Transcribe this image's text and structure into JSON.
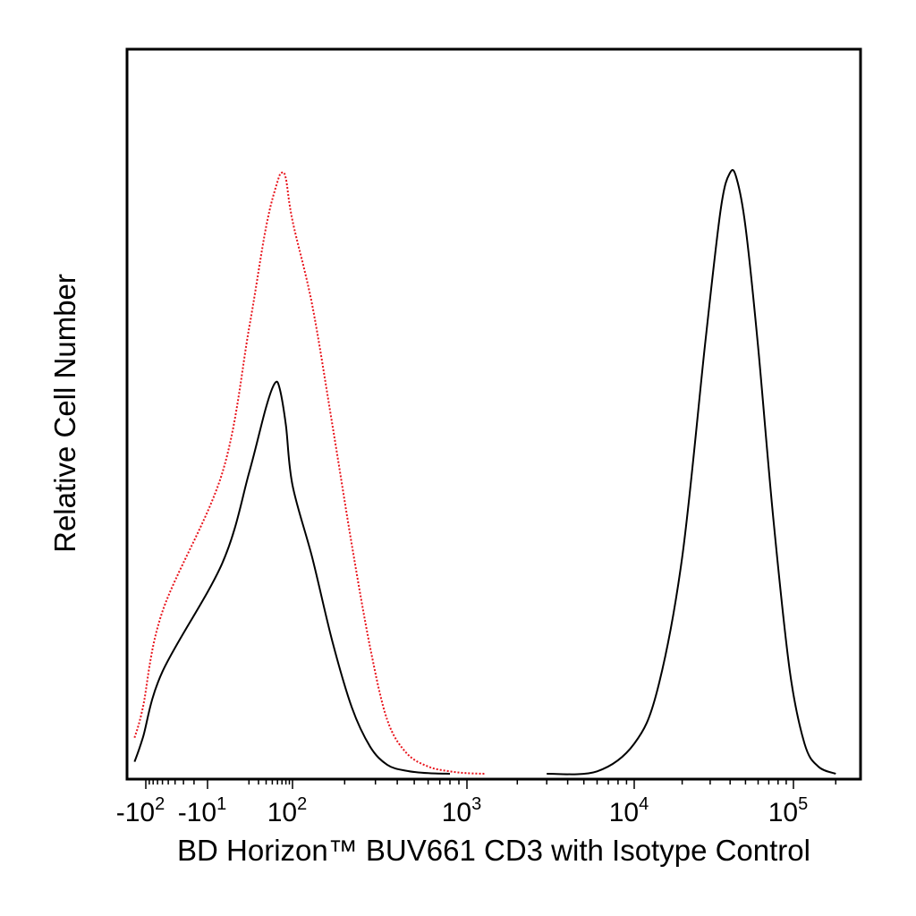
{
  "chart_data": {
    "type": "line",
    "xlabel": "BD Horizon™ BUV661 CD3 with Isotype Control",
    "ylabel": "Relative Cell Number",
    "x_scale": "biexponential",
    "x_ticks": [
      {
        "value": -100,
        "label": "-10",
        "sup": "2"
      },
      {
        "value": -10,
        "label": "-10",
        "sup": "1"
      },
      {
        "value": 100,
        "label": "10",
        "sup": "2"
      },
      {
        "value": 1000,
        "label": "10",
        "sup": "3"
      },
      {
        "value": 10000,
        "label": "10",
        "sup": "4"
      },
      {
        "value": 100000,
        "label": "10",
        "sup": "5"
      }
    ],
    "grid": false,
    "series": [
      {
        "color": "#e8141c",
        "style": "dotted",
        "x": [
          -200,
          -120,
          -60,
          0,
          20,
          40,
          60,
          70,
          80,
          100,
          130,
          170,
          220,
          280,
          350,
          450,
          600,
          800,
          1000,
          1300
        ],
        "y": [
          0.06,
          0.11,
          0.27,
          0.5,
          0.74,
          0.91,
          0.985,
          1.0,
          0.99,
          0.92,
          0.78,
          0.58,
          0.38,
          0.21,
          0.09,
          0.035,
          0.012,
          0.004,
          0.001,
          0.0
        ]
      },
      {
        "color": "#000000",
        "style": "solid",
        "x": [
          -200,
          -120,
          -60,
          0,
          20,
          40,
          55,
          65,
          80,
          100,
          130,
          170,
          220,
          280,
          350,
          450,
          600,
          800
        ],
        "y": [
          0.02,
          0.06,
          0.17,
          0.35,
          0.5,
          0.61,
          0.65,
          0.64,
          0.58,
          0.48,
          0.36,
          0.22,
          0.11,
          0.045,
          0.015,
          0.005,
          0.001,
          0.0
        ]
      },
      {
        "color": "#000000",
        "style": "solid",
        "x": [
          3000,
          6000,
          10000,
          14000,
          20000,
          28000,
          35000,
          40000,
          44000,
          50000,
          60000,
          75000,
          95000,
          120000,
          150000,
          200000
        ],
        "y": [
          0.0,
          0.004,
          0.05,
          0.14,
          0.36,
          0.72,
          0.94,
          1.0,
          0.99,
          0.91,
          0.71,
          0.42,
          0.17,
          0.05,
          0.012,
          0.0
        ]
      }
    ]
  }
}
